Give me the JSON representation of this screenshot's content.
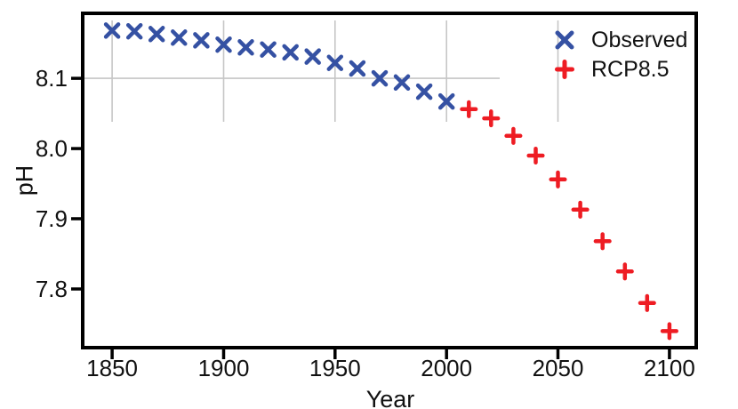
{
  "figure": {
    "background": "#ffffff",
    "axis_color": "#000000",
    "text_color": "#111111"
  },
  "chart_data": {
    "type": "scatter",
    "xlabel": "Year",
    "ylabel": "pH",
    "xlim": [
      1837.6,
      2112.0
    ],
    "ylim": [
      7.719,
      8.19
    ],
    "xticks": [
      1850,
      1900,
      1950,
      2000,
      2050,
      2100
    ],
    "yticks": [
      8.1,
      8.0,
      7.9,
      7.8
    ],
    "ytick_labels": [
      "8.1",
      "8.0",
      "7.9",
      "7.8"
    ],
    "grid": {
      "style": "partial",
      "color": "#c6c6c6",
      "x_values": [
        1850,
        1900,
        1950,
        2000,
        2050
      ],
      "y_values": [
        8.1
      ]
    },
    "legend": {
      "position": "upper-right",
      "entries": [
        "Observed",
        "RCP8.5"
      ]
    },
    "series": [
      {
        "name": "Observed",
        "marker": "x",
        "color": "#3551a3",
        "x": [
          1850,
          1860,
          1870,
          1880,
          1890,
          1900,
          1910,
          1920,
          1930,
          1940,
          1950,
          1960,
          1970,
          1980,
          1990,
          2000
        ],
        "y": [
          8.168,
          8.167,
          8.163,
          8.158,
          8.154,
          8.148,
          8.144,
          8.141,
          8.137,
          8.131,
          8.122,
          8.114,
          8.1,
          8.094,
          8.081,
          8.067
        ]
      },
      {
        "name": "RCP8.5",
        "marker": "plus",
        "color": "#ee1c23",
        "x": [
          2010,
          2020,
          2030,
          2040,
          2050,
          2060,
          2070,
          2080,
          2090,
          2100
        ],
        "y": [
          8.056,
          8.043,
          8.018,
          7.99,
          7.956,
          7.913,
          7.868,
          7.825,
          7.78,
          7.74
        ]
      }
    ]
  }
}
